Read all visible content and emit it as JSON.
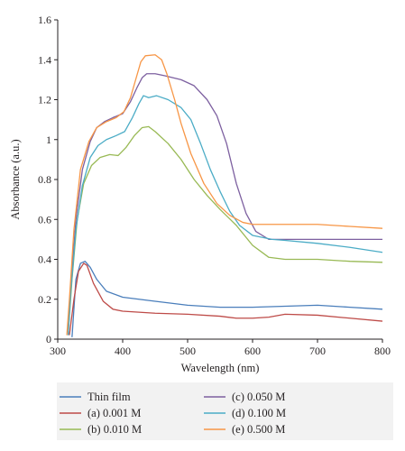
{
  "chart_data": {
    "type": "line",
    "title": "",
    "xlabel": "Wavelength (nm)",
    "ylabel": "Absorbance (a.u.)",
    "xlim": [
      300,
      800
    ],
    "ylim": [
      0,
      1.6
    ],
    "x_ticks": [
      300,
      400,
      500,
      600,
      700,
      800
    ],
    "y_ticks": [
      0,
      0.2,
      0.4,
      0.6,
      0.8,
      1,
      1.2,
      1.4,
      1.6
    ],
    "x_tick_labels": [
      "300",
      "400",
      "500",
      "600",
      "700",
      "800"
    ],
    "y_tick_labels": [
      "0",
      "0.2",
      "0.4",
      "0.6",
      "0.8",
      "1",
      "1.2",
      "1.4",
      "1.6"
    ],
    "grid": false,
    "legend_position": "bottom",
    "series": [
      {
        "name": "Thin film",
        "color": "#4a7ebb",
        "points": [
          [
            322,
            0.01
          ],
          [
            328,
            0.3
          ],
          [
            335,
            0.38
          ],
          [
            342,
            0.39
          ],
          [
            350,
            0.36
          ],
          [
            360,
            0.3
          ],
          [
            375,
            0.24
          ],
          [
            400,
            0.21
          ],
          [
            450,
            0.19
          ],
          [
            500,
            0.17
          ],
          [
            550,
            0.16
          ],
          [
            600,
            0.16
          ],
          [
            650,
            0.165
          ],
          [
            700,
            0.17
          ],
          [
            750,
            0.16
          ],
          [
            800,
            0.15
          ]
        ]
      },
      {
        "name": "(a) 0.001 M",
        "color": "#be4b48",
        "points": [
          [
            318,
            0.02
          ],
          [
            325,
            0.2
          ],
          [
            332,
            0.34
          ],
          [
            340,
            0.38
          ],
          [
            345,
            0.37
          ],
          [
            355,
            0.28
          ],
          [
            370,
            0.19
          ],
          [
            385,
            0.15
          ],
          [
            400,
            0.14
          ],
          [
            450,
            0.13
          ],
          [
            500,
            0.125
          ],
          [
            550,
            0.115
          ],
          [
            575,
            0.105
          ],
          [
            600,
            0.105
          ],
          [
            625,
            0.11
          ],
          [
            650,
            0.125
          ],
          [
            700,
            0.12
          ],
          [
            750,
            0.105
          ],
          [
            800,
            0.09
          ]
        ]
      },
      {
        "name": "(b) 0.010 M",
        "color": "#98b954",
        "points": [
          [
            316,
            0.02
          ],
          [
            322,
            0.3
          ],
          [
            330,
            0.6
          ],
          [
            340,
            0.78
          ],
          [
            352,
            0.87
          ],
          [
            365,
            0.91
          ],
          [
            380,
            0.925
          ],
          [
            393,
            0.92
          ],
          [
            405,
            0.96
          ],
          [
            418,
            1.02
          ],
          [
            430,
            1.06
          ],
          [
            440,
            1.065
          ],
          [
            450,
            1.04
          ],
          [
            470,
            0.98
          ],
          [
            490,
            0.9
          ],
          [
            510,
            0.8
          ],
          [
            530,
            0.72
          ],
          [
            550,
            0.65
          ],
          [
            575,
            0.57
          ],
          [
            600,
            0.47
          ],
          [
            625,
            0.41
          ],
          [
            650,
            0.4
          ],
          [
            700,
            0.4
          ],
          [
            750,
            0.39
          ],
          [
            800,
            0.385
          ]
        ]
      },
      {
        "name": "(c) 0.050 M",
        "color": "#7d60a0",
        "points": [
          [
            316,
            0.02
          ],
          [
            320,
            0.25
          ],
          [
            328,
            0.6
          ],
          [
            338,
            0.85
          ],
          [
            350,
            0.99
          ],
          [
            360,
            1.06
          ],
          [
            372,
            1.09
          ],
          [
            385,
            1.11
          ],
          [
            400,
            1.13
          ],
          [
            412,
            1.19
          ],
          [
            422,
            1.26
          ],
          [
            430,
            1.31
          ],
          [
            437,
            1.33
          ],
          [
            450,
            1.33
          ],
          [
            465,
            1.32
          ],
          [
            490,
            1.3
          ],
          [
            510,
            1.27
          ],
          [
            530,
            1.2
          ],
          [
            545,
            1.12
          ],
          [
            560,
            0.98
          ],
          [
            575,
            0.78
          ],
          [
            590,
            0.63
          ],
          [
            605,
            0.54
          ],
          [
            625,
            0.5
          ],
          [
            650,
            0.5
          ],
          [
            700,
            0.5
          ],
          [
            800,
            0.5
          ]
        ]
      },
      {
        "name": "(d) 0.100 M",
        "color": "#4bacc6",
        "points": [
          [
            316,
            0.02
          ],
          [
            320,
            0.23
          ],
          [
            328,
            0.55
          ],
          [
            338,
            0.77
          ],
          [
            350,
            0.91
          ],
          [
            362,
            0.97
          ],
          [
            375,
            1.0
          ],
          [
            390,
            1.02
          ],
          [
            403,
            1.04
          ],
          [
            415,
            1.11
          ],
          [
            425,
            1.18
          ],
          [
            432,
            1.22
          ],
          [
            440,
            1.21
          ],
          [
            452,
            1.22
          ],
          [
            470,
            1.2
          ],
          [
            490,
            1.16
          ],
          [
            505,
            1.1
          ],
          [
            520,
            0.98
          ],
          [
            535,
            0.85
          ],
          [
            550,
            0.74
          ],
          [
            565,
            0.64
          ],
          [
            580,
            0.57
          ],
          [
            600,
            0.52
          ],
          [
            630,
            0.5
          ],
          [
            650,
            0.495
          ],
          [
            700,
            0.48
          ],
          [
            750,
            0.46
          ],
          [
            800,
            0.435
          ]
        ]
      },
      {
        "name": "(e) 0.500 M",
        "color": "#f79646",
        "points": [
          [
            314,
            0.02
          ],
          [
            318,
            0.2
          ],
          [
            325,
            0.55
          ],
          [
            335,
            0.85
          ],
          [
            348,
            0.99
          ],
          [
            360,
            1.06
          ],
          [
            375,
            1.09
          ],
          [
            390,
            1.11
          ],
          [
            402,
            1.14
          ],
          [
            412,
            1.21
          ],
          [
            420,
            1.3
          ],
          [
            428,
            1.39
          ],
          [
            435,
            1.42
          ],
          [
            450,
            1.425
          ],
          [
            460,
            1.4
          ],
          [
            468,
            1.33
          ],
          [
            480,
            1.2
          ],
          [
            490,
            1.08
          ],
          [
            505,
            0.93
          ],
          [
            525,
            0.78
          ],
          [
            545,
            0.68
          ],
          [
            565,
            0.62
          ],
          [
            585,
            0.585
          ],
          [
            600,
            0.575
          ],
          [
            650,
            0.575
          ],
          [
            700,
            0.575
          ],
          [
            750,
            0.565
          ],
          [
            800,
            0.555
          ]
        ]
      }
    ]
  }
}
